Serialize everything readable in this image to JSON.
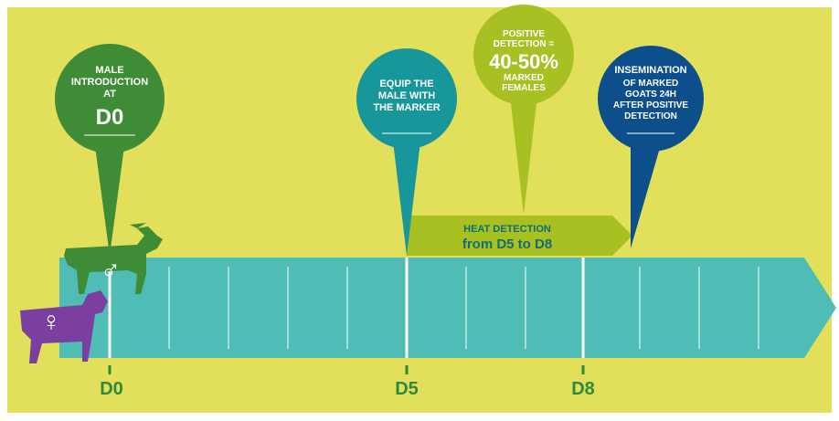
{
  "pins": [
    {
      "lines": [
        "MALE",
        "INTRODUCTION",
        "AT"
      ],
      "big": "D0"
    },
    {
      "lines": [
        "EQUIP THE",
        "MALE WITH",
        "THE MARKER"
      ]
    },
    {
      "lines": [
        "POSITIVE",
        "DETECTION ="
      ],
      "big": "40-50%",
      "after": [
        "MARKED",
        "FEMALES"
      ]
    },
    {
      "lines": [
        "INSEMINATION"
      ],
      "after": [
        "OF MARKED",
        "GOATS 24H",
        "AFTER POSITIVE",
        "DETECTION"
      ]
    }
  ],
  "heat": {
    "line1": "HEAT DETECTION",
    "line2": "from D5 to D8"
  },
  "timeline": {
    "labels": [
      "D0",
      "D5",
      "D8"
    ]
  },
  "symbols": {
    "male": "♂",
    "female": "♀"
  }
}
